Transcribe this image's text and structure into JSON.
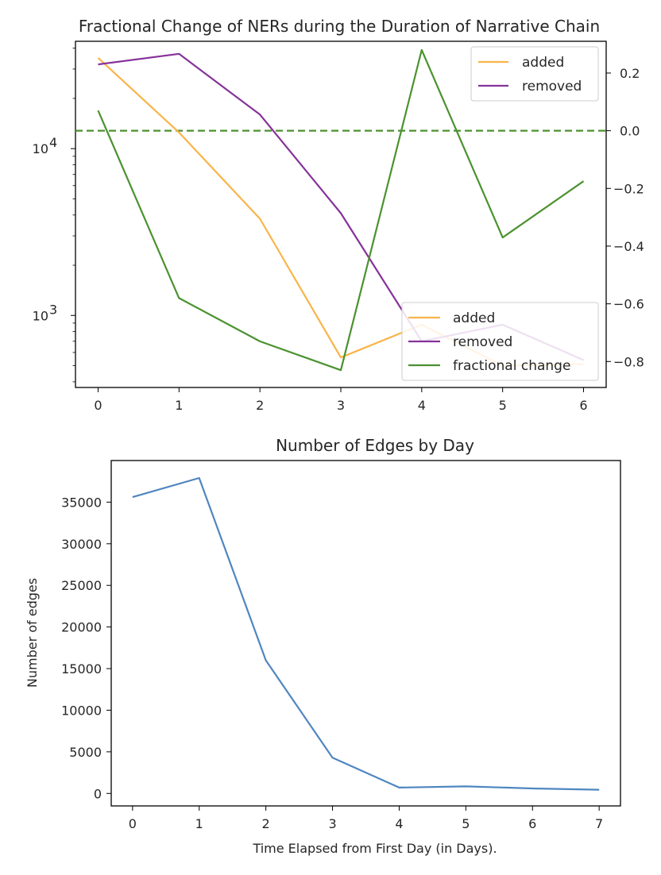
{
  "colors": {
    "added": "#f9b449",
    "removed": "#86329a",
    "fractional": "#4b922f",
    "edges": "#4f86c0",
    "axis": "#000000"
  },
  "chart_data": [
    {
      "type": "line",
      "title": "Fractional Change of NERs during the Duration of Narrative Chain",
      "xlabel": "",
      "ylabel": "",
      "x": [
        0,
        1,
        2,
        3,
        4,
        5,
        6
      ],
      "xlim": [
        -0.28,
        6.28
      ],
      "left_axis": {
        "scale": "log",
        "ylim": [
          370,
          44000
        ],
        "ticks": [
          {
            "value": 1000,
            "base": "10",
            "exp": "3"
          },
          {
            "value": 10000,
            "base": "10",
            "exp": "4"
          }
        ]
      },
      "right_axis": {
        "scale": "linear",
        "ylim": [
          -0.89,
          0.31
        ],
        "ticks": [
          0.2,
          0.0,
          -0.2,
          -0.4,
          -0.6,
          -0.8
        ],
        "tick_labels": [
          "0.2",
          "0.0",
          "−0.2",
          "−0.4",
          "−0.6",
          "−0.8"
        ]
      },
      "series": [
        {
          "name": "added",
          "axis": "left",
          "color": "#f9b449",
          "values": [
            35000,
            12500,
            3800,
            560,
            880,
            500,
            510
          ]
        },
        {
          "name": "removed",
          "axis": "left",
          "color": "#86329a",
          "values": [
            32000,
            37000,
            16000,
            4100,
            700,
            880,
            540
          ]
        },
        {
          "name": "fractional change",
          "axis": "right",
          "color": "#4b922f",
          "values": [
            0.07,
            -0.58,
            -0.73,
            -0.83,
            0.28,
            -0.37,
            -0.175
          ]
        }
      ],
      "hline": {
        "axis": "right",
        "value": 0.0,
        "color": "#4b922f",
        "style": "dashed"
      },
      "legends": [
        {
          "placement": "top-right",
          "entries": [
            "added",
            "removed"
          ]
        },
        {
          "placement": "bottom-right",
          "entries": [
            "added",
            "removed",
            "fractional change"
          ]
        }
      ]
    },
    {
      "type": "line",
      "title": "Number of Edges by Day",
      "xlabel": "Time Elapsed from First Day (in Days).",
      "ylabel": "Number of edges",
      "x": [
        0,
        1,
        2,
        3,
        4,
        5,
        6,
        7
      ],
      "xlim": [
        -0.32,
        7.32
      ],
      "ylim": [
        -1500,
        40000
      ],
      "yticks": [
        0,
        5000,
        10000,
        15000,
        20000,
        25000,
        30000,
        35000
      ],
      "series": [
        {
          "name": "",
          "color": "#4f86c0",
          "values": [
            35600,
            37900,
            16000,
            4300,
            700,
            850,
            600,
            450
          ]
        }
      ]
    }
  ]
}
